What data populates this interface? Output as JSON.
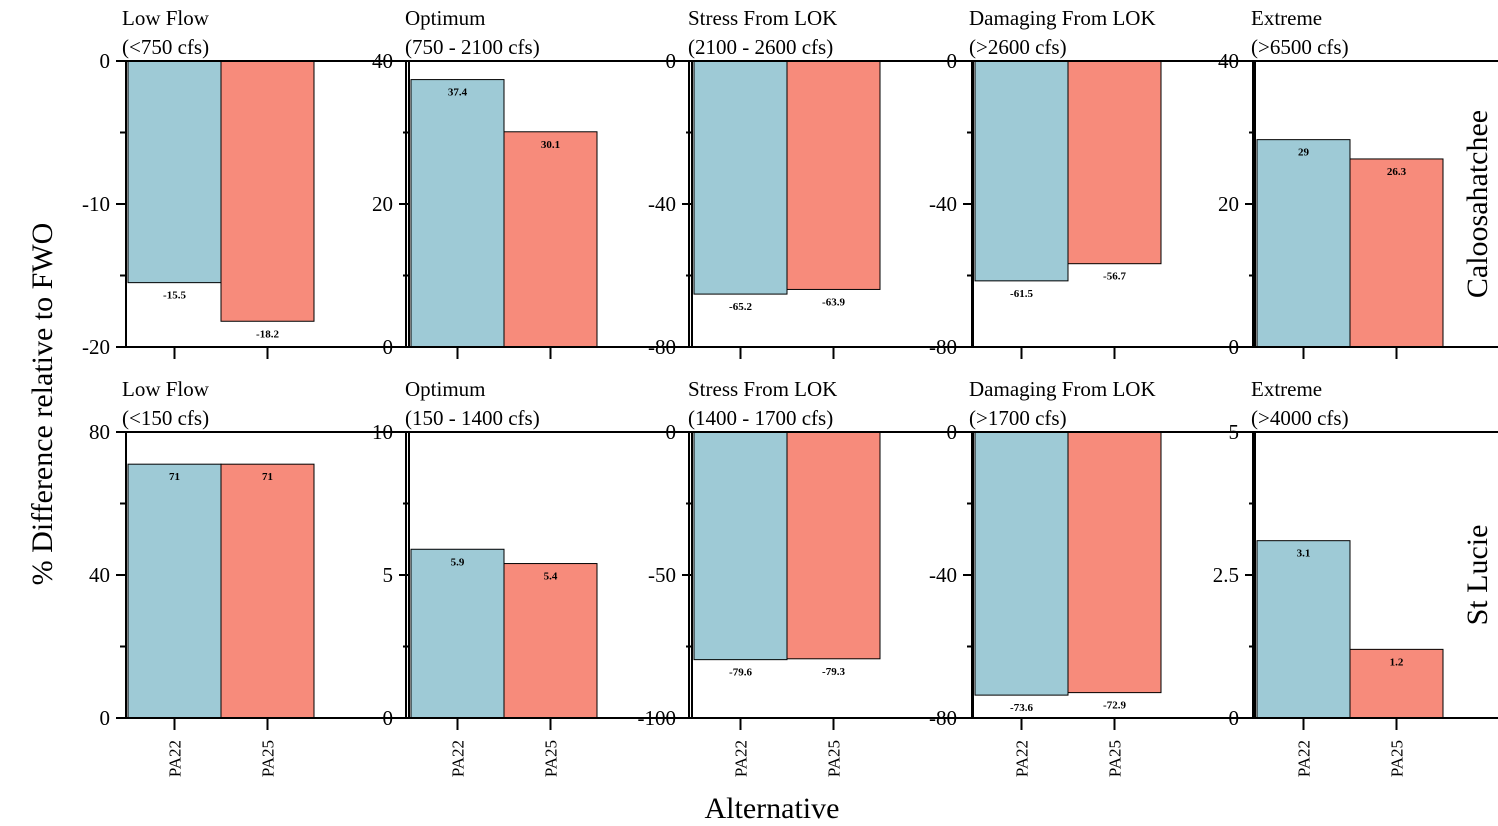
{
  "figure": {
    "ylabel": "% Difference relative to FWO",
    "xlabel": "Alternative",
    "row_labels": [
      "Caloosahatchee",
      "St Lucie"
    ]
  },
  "colors": {
    "PA22": "#9ECAD6",
    "PA25": "#F78B7B"
  },
  "chart_data": [
    {
      "type": "bar",
      "row": "Caloosahatchee",
      "title": [
        "Low Flow",
        "(<750 cfs)"
      ],
      "categories": [
        "PA22",
        "PA25"
      ],
      "values": [
        -15.5,
        -18.2
      ],
      "labels": [
        "-15.5",
        "-18.2"
      ],
      "ylim": [
        -20,
        0
      ],
      "yticks": [
        -20,
        -10,
        0
      ],
      "ytick_labels": [
        "-20",
        "-10",
        "0"
      ]
    },
    {
      "type": "bar",
      "row": "Caloosahatchee",
      "title": [
        "Optimum",
        "(750 - 2100 cfs)"
      ],
      "categories": [
        "PA22",
        "PA25"
      ],
      "values": [
        37.4,
        30.1
      ],
      "labels": [
        "37.4",
        "30.1"
      ],
      "ylim": [
        0,
        40
      ],
      "yticks": [
        0,
        20,
        40
      ],
      "ytick_labels": [
        "0",
        "20",
        "40"
      ]
    },
    {
      "type": "bar",
      "row": "Caloosahatchee",
      "title": [
        "Stress From LOK",
        "(2100 - 2600 cfs)"
      ],
      "categories": [
        "PA22",
        "PA25"
      ],
      "values": [
        -65.2,
        -63.9
      ],
      "labels": [
        "-65.2",
        "-63.9"
      ],
      "ylim": [
        -80,
        0
      ],
      "yticks": [
        -80,
        -40,
        0
      ],
      "ytick_labels": [
        "-80",
        "-40",
        "0"
      ]
    },
    {
      "type": "bar",
      "row": "Caloosahatchee",
      "title": [
        "Damaging From LOK",
        "(>2600 cfs)"
      ],
      "categories": [
        "PA22",
        "PA25"
      ],
      "values": [
        -61.5,
        -56.7
      ],
      "labels": [
        "-61.5",
        "-56.7"
      ],
      "ylim": [
        -80,
        0
      ],
      "yticks": [
        -80,
        -40,
        0
      ],
      "ytick_labels": [
        "-80",
        "-40",
        "0"
      ]
    },
    {
      "type": "bar",
      "row": "Caloosahatchee",
      "title": [
        "Extreme",
        "(>6500 cfs)"
      ],
      "categories": [
        "PA22",
        "PA25"
      ],
      "values": [
        29,
        26.3
      ],
      "labels": [
        "29",
        "26.3"
      ],
      "ylim": [
        0,
        40
      ],
      "yticks": [
        0,
        20,
        40
      ],
      "ytick_labels": [
        "0",
        "20",
        "40"
      ]
    },
    {
      "type": "bar",
      "row": "St Lucie",
      "title": [
        "Low Flow",
        "(<150 cfs)"
      ],
      "categories": [
        "PA22",
        "PA25"
      ],
      "values": [
        71,
        71
      ],
      "labels": [
        "71",
        "71"
      ],
      "ylim": [
        0,
        80
      ],
      "yticks": [
        0,
        40,
        80
      ],
      "ytick_labels": [
        "0",
        "40",
        "80"
      ]
    },
    {
      "type": "bar",
      "row": "St Lucie",
      "title": [
        "Optimum",
        "(150 - 1400 cfs)"
      ],
      "categories": [
        "PA22",
        "PA25"
      ],
      "values": [
        5.9,
        5.4
      ],
      "labels": [
        "5.9",
        "5.4"
      ],
      "ylim": [
        0,
        10
      ],
      "yticks": [
        0,
        5,
        10
      ],
      "ytick_labels": [
        "0",
        "5",
        "10"
      ]
    },
    {
      "type": "bar",
      "row": "St Lucie",
      "title": [
        "Stress From LOK",
        "(1400 - 1700 cfs)"
      ],
      "categories": [
        "PA22",
        "PA25"
      ],
      "values": [
        -79.6,
        -79.3
      ],
      "labels": [
        "-79.6",
        "-79.3"
      ],
      "ylim": [
        -100,
        0
      ],
      "yticks": [
        -100,
        -50,
        0
      ],
      "ytick_labels": [
        "-100",
        "-50",
        "0"
      ]
    },
    {
      "type": "bar",
      "row": "St Lucie",
      "title": [
        "Damaging From LOK",
        "(>1700 cfs)"
      ],
      "categories": [
        "PA22",
        "PA25"
      ],
      "values": [
        -73.6,
        -72.9
      ],
      "labels": [
        "-73.6",
        "-72.9"
      ],
      "ylim": [
        -80,
        0
      ],
      "yticks": [
        -80,
        -40,
        0
      ],
      "ytick_labels": [
        "-80",
        "-40",
        "0"
      ]
    },
    {
      "type": "bar",
      "row": "St Lucie",
      "title": [
        "Extreme",
        "(>4000 cfs)"
      ],
      "categories": [
        "PA22",
        "PA25"
      ],
      "values": [
        3.1,
        1.2
      ],
      "labels": [
        "3.1",
        "1.2"
      ],
      "ylim": [
        0,
        5
      ],
      "yticks": [
        0,
        2.5,
        5
      ],
      "ytick_labels": [
        "0",
        "2.5",
        "5"
      ]
    }
  ]
}
